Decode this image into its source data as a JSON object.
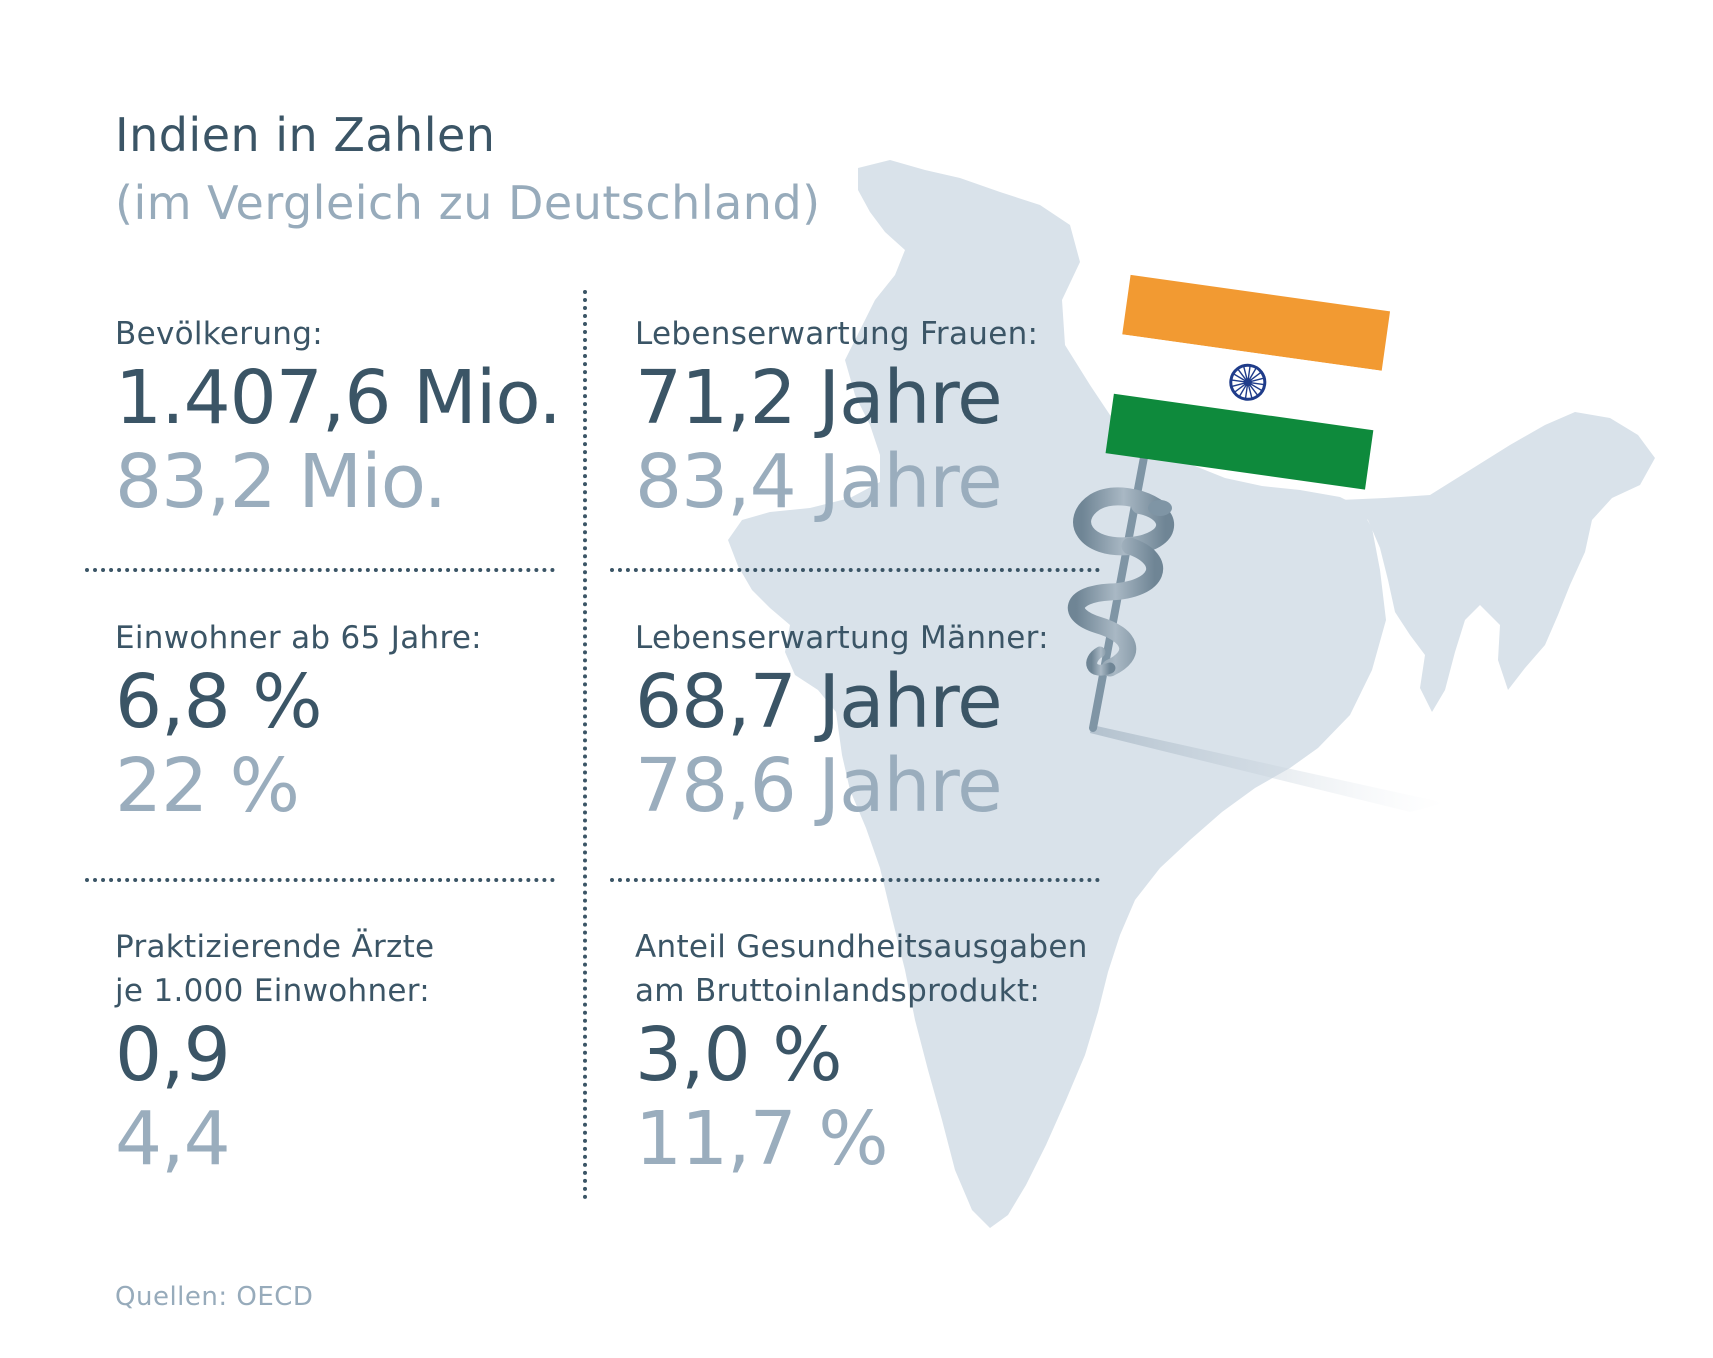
{
  "header": {
    "title": "Indien in Zahlen",
    "subtitle": "(im Vergleich zu Deutschland)"
  },
  "stats": [
    {
      "label": "Bevölkerung:",
      "value": "1.407,6 Mio.",
      "compare": "83,2 Mio."
    },
    {
      "label": "Lebenserwartung Frauen:",
      "value": "71,2 Jahre",
      "compare": "83,4 Jahre"
    },
    {
      "label": "Einwohner ab 65 Jahre:",
      "value": "6,8 %",
      "compare": "22 %"
    },
    {
      "label": "Lebenserwartung Männer:",
      "value": "68,7 Jahre",
      "compare": "78,6 Jahre"
    },
    {
      "label": "Praktizierende Ärzte\nje 1.000 Einwohner:",
      "value": "0,9",
      "compare": "4,4"
    },
    {
      "label": "Anteil Gesundheitsausgaben\nam Bruttoinlandsprodukt:",
      "value": "3,0 %",
      "compare": "11,7 %"
    }
  ],
  "footer": {
    "source": "Quellen: OECD"
  },
  "colors": {
    "primary_text": "#3b5566",
    "secondary_text": "#9aadbd",
    "map_fill": "#d9e2ea",
    "flag_saffron": "#f29a32",
    "flag_white": "#ffffff",
    "flag_green": "#0e8a3c",
    "chakra": "#1f3c8a"
  },
  "illustration": {
    "map": "india-map-silhouette",
    "flag": "india-flag-icon",
    "staff": "rod-of-asclepius-icon"
  }
}
